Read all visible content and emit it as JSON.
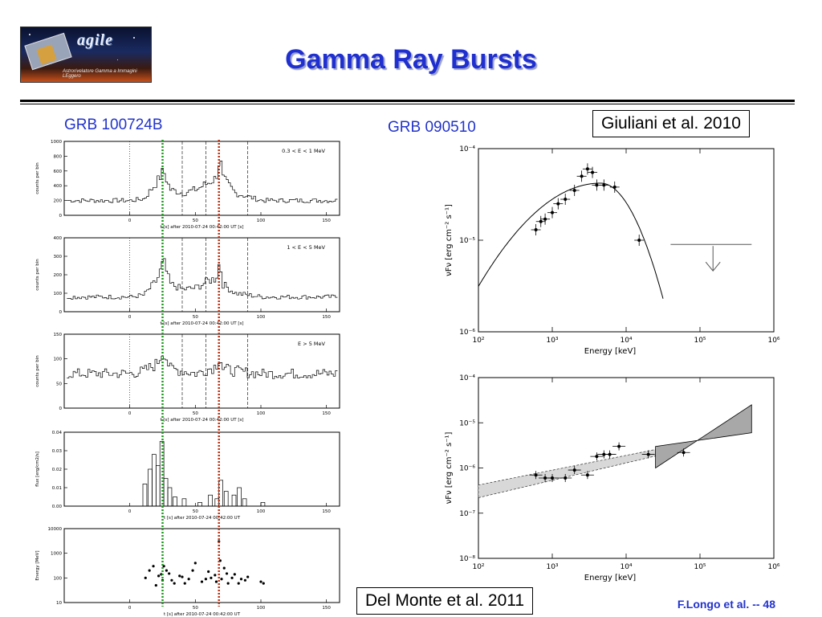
{
  "slide": {
    "title": "Gamma Ray Bursts",
    "logo_word": "agile",
    "logo_subtitle": "Astrorivelatore Gamma a Immagini LEggero",
    "footer": "F.Longo et al. -- 48"
  },
  "left": {
    "label": "GRB 100724B",
    "xlabel": "t [s] after 2010-07-24 00:42:00 UT [s]",
    "xlabel_plain": "t [s] after 2010-07-24 00:42:00 UT",
    "x_ticks": [
      "0",
      "50",
      "100",
      "150"
    ],
    "panels": [
      {
        "ylabel": "counts per bin",
        "band": "0.3 < E < 1 MeV",
        "y_ticks": [
          "0",
          "200",
          "400",
          "600",
          "800",
          "1000"
        ]
      },
      {
        "ylabel": "counts per bin",
        "band": "1 < E < 5 MeV",
        "y_ticks": [
          "0",
          "100",
          "200",
          "300",
          "400"
        ]
      },
      {
        "ylabel": "counts per bin",
        "band": "E > 5 MeV",
        "y_ticks": [
          "0",
          "50",
          "100",
          "150"
        ]
      },
      {
        "ylabel": "flux [erg/cm2/s]",
        "band": "",
        "y_ticks": [
          "0.00",
          "0.01",
          "0.02",
          "0.03",
          "0.04"
        ]
      },
      {
        "ylabel": "Energy [MeV]",
        "band": "",
        "y_ticks": [
          "10",
          "100",
          "1000",
          "10000"
        ]
      }
    ]
  },
  "right_top": {
    "label": "GRB 090510",
    "citation": "Giuliani et al. 2010",
    "xlabel": "Energy [keV]",
    "ylabel": "νFν [erg cm⁻² s⁻¹]",
    "x_ticks": [
      "10²",
      "10³",
      "10⁴",
      "10⁵",
      "10⁶"
    ],
    "y_ticks": [
      "10⁻⁴",
      "10⁻⁵",
      "10⁻⁶"
    ]
  },
  "right_bottom": {
    "citation": "Del Monte et al. 2011",
    "xlabel": "Energy [keV]",
    "ylabel": "νFν [erg cm⁻² s⁻¹]",
    "x_ticks": [
      "10²",
      "10³",
      "10⁴",
      "10⁵",
      "10⁶"
    ],
    "y_ticks": [
      "10⁻⁴",
      "10⁻⁵",
      "10⁻⁶",
      "10⁻⁷",
      "10⁻⁸"
    ]
  },
  "colors": {
    "title": "#1f2fd0",
    "label": "#2233cc",
    "green_marker": "#1a9a1a",
    "red_marker": "#c03010"
  },
  "chart_data": [
    {
      "type": "line",
      "title": "",
      "series": [
        {
          "name": "0.3 < E < 1 MeV",
          "x": [
            0,
            10,
            20,
            25,
            30,
            40,
            50,
            60,
            65,
            68,
            70,
            80,
            90,
            100,
            150
          ],
          "y": [
            200,
            220,
            450,
            600,
            350,
            300,
            350,
            450,
            500,
            800,
            500,
            300,
            250,
            200,
            200
          ]
        }
      ],
      "xlim": [
        -50,
        160
      ],
      "ylim": [
        0,
        1000
      ]
    },
    {
      "type": "line",
      "title": "",
      "series": [
        {
          "name": "1 < E < 5 MeV",
          "x": [
            0,
            10,
            20,
            25,
            30,
            40,
            50,
            60,
            65,
            68,
            70,
            80,
            90,
            100,
            150
          ],
          "y": [
            80,
            90,
            170,
            270,
            150,
            120,
            130,
            170,
            180,
            280,
            150,
            100,
            90,
            80,
            80
          ]
        }
      ],
      "xlim": [
        -50,
        160
      ],
      "ylim": [
        0,
        400
      ]
    },
    {
      "type": "line",
      "title": "",
      "series": [
        {
          "name": "E > 5 MeV",
          "x": [
            0,
            10,
            20,
            25,
            30,
            40,
            50,
            60,
            65,
            68,
            70,
            80,
            90,
            100,
            150
          ],
          "y": [
            70,
            75,
            90,
            120,
            80,
            75,
            70,
            80,
            85,
            110,
            80,
            75,
            72,
            70,
            70
          ]
        }
      ],
      "xlim": [
        -50,
        160
      ],
      "ylim": [
        0,
        150
      ]
    },
    {
      "type": "scatter",
      "title": "",
      "x": [
        12,
        18,
        22,
        25,
        28,
        30,
        34,
        40,
        45,
        50,
        55,
        60,
        62,
        65,
        68,
        70,
        72,
        75,
        80,
        85,
        90,
        100,
        102,
        15,
        20,
        24,
        26,
        32,
        38,
        42,
        48,
        58,
        66,
        69,
        74,
        78,
        83,
        88
      ],
      "y": [
        100,
        300,
        120,
        80,
        200,
        150,
        60,
        110,
        90,
        400,
        70,
        180,
        100,
        130,
        3000,
        90,
        250,
        60,
        140,
        90,
        110,
        70,
        60,
        200,
        50,
        140,
        300,
        80,
        120,
        60,
        200,
        90,
        70,
        500,
        150,
        100,
        60,
        80
      ],
      "xlim": [
        -50,
        160
      ],
      "ylim": [
        10,
        10000
      ],
      "ylog": true
    },
    {
      "type": "line",
      "title": "",
      "x": [
        600,
        700,
        800,
        1000,
        1200,
        1500,
        2000,
        2500,
        3000,
        3500,
        4000,
        5000,
        7000,
        15000
      ],
      "y": [
        1.3e-05,
        1.6e-05,
        1.7e-05,
        2e-05,
        2.5e-05,
        2.8e-05,
        3.5e-05,
        5e-05,
        6e-05,
        5.5e-05,
        4e-05,
        4e-05,
        3.8e-05,
        1e-05
      ],
      "xlim": [
        100,
        1000000
      ],
      "ylim": [
        1e-06,
        0.0001
      ],
      "xlog": true,
      "ylog": true
    },
    {
      "type": "scatter",
      "title": "",
      "x": [
        600,
        800,
        1000,
        1500,
        2000,
        3000,
        4000,
        5000,
        6000,
        8000,
        20000,
        60000
      ],
      "y": [
        7e-07,
        6e-07,
        6e-07,
        6e-07,
        9e-07,
        7e-07,
        1.8e-06,
        2e-06,
        2e-06,
        3e-06,
        2e-06,
        2.2e-06
      ],
      "xlim": [
        100,
        1000000
      ],
      "ylim": [
        1e-08,
        0.0001
      ],
      "xlog": true,
      "ylog": true
    }
  ]
}
